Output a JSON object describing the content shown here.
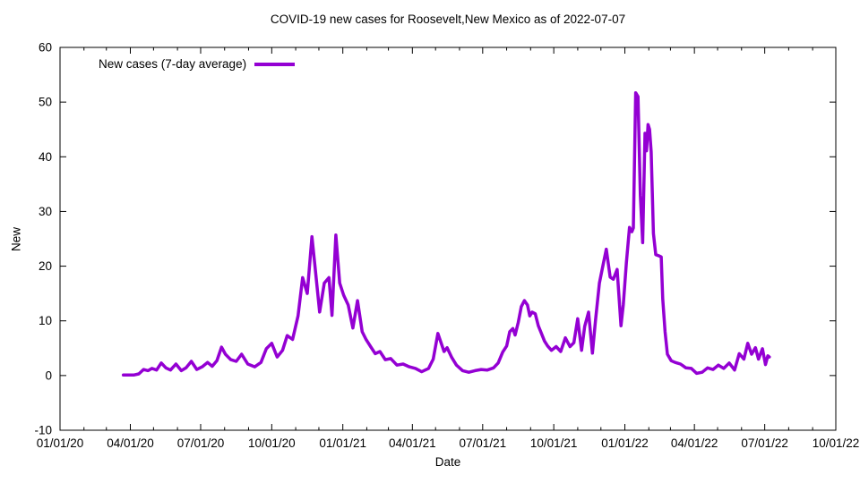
{
  "title": "COVID-19 new cases for Roosevelt,New Mexico as of 2022-07-07",
  "legend": {
    "label": "New cases (7-day average)"
  },
  "axes": {
    "x": {
      "label": "Date",
      "ticks": [
        "01/01/20",
        "04/01/20",
        "07/01/20",
        "10/01/20",
        "01/01/21",
        "04/01/21",
        "07/01/21",
        "10/01/21",
        "01/01/22",
        "04/01/22",
        "07/01/22",
        "10/01/22"
      ]
    },
    "y": {
      "label": "New",
      "ticks": [
        -10,
        0,
        10,
        20,
        30,
        40,
        50,
        60
      ]
    }
  },
  "colors": {
    "line": "#9400d3",
    "text": "#000000",
    "background": "#ffffff"
  },
  "chart_data": {
    "type": "line",
    "title": "COVID-19 new cases for Roosevelt,New Mexico as of 2022-07-07",
    "xlabel": "Date",
    "ylabel": "New",
    "xlim": [
      "2020-01-01",
      "2022-10-01"
    ],
    "ylim": [
      -10,
      60
    ],
    "x_major_tick_interval_months": 3,
    "x_minor_tick_interval_months": 1,
    "grid": false,
    "legend_position": "top-left-inside",
    "series": [
      {
        "name": "New cases (7-day average)",
        "color": "#9400d3",
        "points": [
          [
            "2020-03-23",
            0.1
          ],
          [
            "2020-03-30",
            0.1
          ],
          [
            "2020-04-06",
            0.1
          ],
          [
            "2020-04-12",
            0.3
          ],
          [
            "2020-04-18",
            1.1
          ],
          [
            "2020-04-24",
            0.9
          ],
          [
            "2020-04-29",
            1.3
          ],
          [
            "2020-05-05",
            1.0
          ],
          [
            "2020-05-11",
            2.3
          ],
          [
            "2020-05-17",
            1.4
          ],
          [
            "2020-05-23",
            1.0
          ],
          [
            "2020-05-30",
            2.1
          ],
          [
            "2020-06-06",
            0.9
          ],
          [
            "2020-06-12",
            1.4
          ],
          [
            "2020-06-19",
            2.6
          ],
          [
            "2020-06-26",
            1.1
          ],
          [
            "2020-07-03",
            1.6
          ],
          [
            "2020-07-10",
            2.4
          ],
          [
            "2020-07-16",
            1.7
          ],
          [
            "2020-07-22",
            2.7
          ],
          [
            "2020-07-28",
            5.2
          ],
          [
            "2020-08-02",
            3.9
          ],
          [
            "2020-08-09",
            2.9
          ],
          [
            "2020-08-16",
            2.6
          ],
          [
            "2020-08-23",
            3.9
          ],
          [
            "2020-08-31",
            2.1
          ],
          [
            "2020-09-09",
            1.6
          ],
          [
            "2020-09-17",
            2.4
          ],
          [
            "2020-09-24",
            4.9
          ],
          [
            "2020-10-01",
            5.9
          ],
          [
            "2020-10-08",
            3.4
          ],
          [
            "2020-10-15",
            4.6
          ],
          [
            "2020-10-21",
            7.3
          ],
          [
            "2020-10-28",
            6.6
          ],
          [
            "2020-11-04",
            10.9
          ],
          [
            "2020-11-10",
            17.9
          ],
          [
            "2020-11-16",
            15.0
          ],
          [
            "2020-11-22",
            25.4
          ],
          [
            "2020-11-26",
            20.0
          ],
          [
            "2020-12-02",
            11.6
          ],
          [
            "2020-12-08",
            16.9
          ],
          [
            "2020-12-14",
            17.9
          ],
          [
            "2020-12-18",
            11.0
          ],
          [
            "2020-12-23",
            25.7
          ],
          [
            "2020-12-28",
            16.9
          ],
          [
            "2021-01-02",
            14.7
          ],
          [
            "2021-01-08",
            12.9
          ],
          [
            "2021-01-14",
            8.7
          ],
          [
            "2021-01-20",
            13.7
          ],
          [
            "2021-01-26",
            8.0
          ],
          [
            "2021-01-31",
            6.6
          ],
          [
            "2021-02-06",
            5.3
          ],
          [
            "2021-02-12",
            4.0
          ],
          [
            "2021-02-18",
            4.4
          ],
          [
            "2021-02-25",
            2.9
          ],
          [
            "2021-03-04",
            3.1
          ],
          [
            "2021-03-12",
            1.9
          ],
          [
            "2021-03-20",
            2.1
          ],
          [
            "2021-03-28",
            1.6
          ],
          [
            "2021-04-05",
            1.3
          ],
          [
            "2021-04-13",
            0.7
          ],
          [
            "2021-04-22",
            1.3
          ],
          [
            "2021-04-28",
            3.0
          ],
          [
            "2021-05-04",
            7.7
          ],
          [
            "2021-05-12",
            4.4
          ],
          [
            "2021-05-16",
            5.1
          ],
          [
            "2021-05-22",
            3.3
          ],
          [
            "2021-05-28",
            1.9
          ],
          [
            "2021-06-05",
            0.9
          ],
          [
            "2021-06-13",
            0.6
          ],
          [
            "2021-06-21",
            0.9
          ],
          [
            "2021-06-29",
            1.1
          ],
          [
            "2021-07-07",
            1.0
          ],
          [
            "2021-07-15",
            1.4
          ],
          [
            "2021-07-21",
            2.3
          ],
          [
            "2021-07-27",
            4.3
          ],
          [
            "2021-08-01",
            5.4
          ],
          [
            "2021-08-05",
            8.0
          ],
          [
            "2021-08-09",
            8.6
          ],
          [
            "2021-08-12",
            7.4
          ],
          [
            "2021-08-16",
            9.7
          ],
          [
            "2021-08-20",
            12.6
          ],
          [
            "2021-08-24",
            13.7
          ],
          [
            "2021-08-28",
            12.9
          ],
          [
            "2021-08-31",
            10.9
          ],
          [
            "2021-09-03",
            11.6
          ],
          [
            "2021-09-07",
            11.3
          ],
          [
            "2021-09-11",
            9.1
          ],
          [
            "2021-09-15",
            7.7
          ],
          [
            "2021-09-19",
            6.3
          ],
          [
            "2021-09-23",
            5.4
          ],
          [
            "2021-09-28",
            4.6
          ],
          [
            "2021-10-04",
            5.3
          ],
          [
            "2021-10-10",
            4.4
          ],
          [
            "2021-10-16",
            6.9
          ],
          [
            "2021-10-22",
            5.3
          ],
          [
            "2021-10-27",
            6.0
          ],
          [
            "2021-11-01",
            10.4
          ],
          [
            "2021-11-06",
            4.6
          ],
          [
            "2021-11-10",
            9.0
          ],
          [
            "2021-11-15",
            11.6
          ],
          [
            "2021-11-20",
            4.1
          ],
          [
            "2021-11-24",
            10.0
          ],
          [
            "2021-11-29",
            16.9
          ],
          [
            "2021-12-04",
            20.4
          ],
          [
            "2021-12-08",
            23.1
          ],
          [
            "2021-12-13",
            18.0
          ],
          [
            "2021-12-17",
            17.6
          ],
          [
            "2021-12-22",
            19.4
          ],
          [
            "2021-12-27",
            9.1
          ],
          [
            "2021-12-30",
            13.0
          ],
          [
            "2022-01-03",
            20.6
          ],
          [
            "2022-01-07",
            27.1
          ],
          [
            "2022-01-10",
            26.3
          ],
          [
            "2022-01-12",
            27.0
          ],
          [
            "2022-01-15",
            51.7
          ],
          [
            "2022-01-18",
            51.0
          ],
          [
            "2022-01-21",
            33.0
          ],
          [
            "2022-01-24",
            24.3
          ],
          [
            "2022-01-27",
            44.3
          ],
          [
            "2022-01-29",
            41.1
          ],
          [
            "2022-01-31",
            45.9
          ],
          [
            "2022-02-02",
            45.0
          ],
          [
            "2022-02-04",
            40.9
          ],
          [
            "2022-02-07",
            26.0
          ],
          [
            "2022-02-10",
            22.1
          ],
          [
            "2022-02-14",
            21.9
          ],
          [
            "2022-02-17",
            21.7
          ],
          [
            "2022-02-19",
            14.0
          ],
          [
            "2022-02-22",
            8.0
          ],
          [
            "2022-02-25",
            3.9
          ],
          [
            "2022-03-02",
            2.7
          ],
          [
            "2022-03-07",
            2.4
          ],
          [
            "2022-03-14",
            2.1
          ],
          [
            "2022-03-21",
            1.4
          ],
          [
            "2022-03-28",
            1.3
          ],
          [
            "2022-04-04",
            0.4
          ],
          [
            "2022-04-11",
            0.6
          ],
          [
            "2022-04-18",
            1.4
          ],
          [
            "2022-04-25",
            1.1
          ],
          [
            "2022-05-02",
            1.9
          ],
          [
            "2022-05-09",
            1.3
          ],
          [
            "2022-05-16",
            2.3
          ],
          [
            "2022-05-23",
            1.0
          ],
          [
            "2022-05-29",
            4.0
          ],
          [
            "2022-06-04",
            3.0
          ],
          [
            "2022-06-09",
            5.9
          ],
          [
            "2022-06-14",
            3.9
          ],
          [
            "2022-06-19",
            5.1
          ],
          [
            "2022-06-23",
            3.0
          ],
          [
            "2022-06-28",
            4.9
          ],
          [
            "2022-07-02",
            2.0
          ],
          [
            "2022-07-05",
            3.6
          ],
          [
            "2022-07-07",
            3.4
          ]
        ]
      }
    ]
  }
}
